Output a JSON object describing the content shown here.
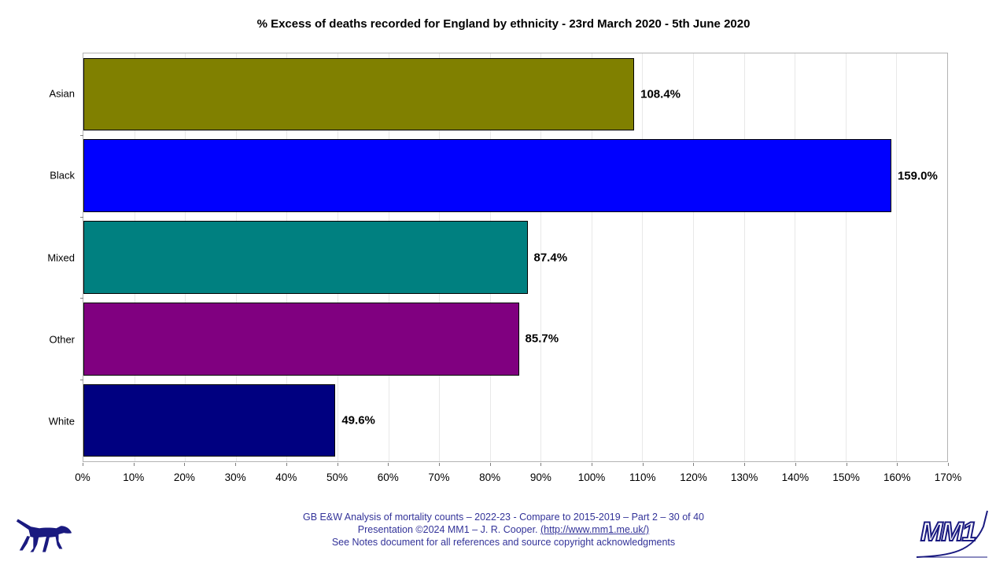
{
  "title": "% Excess of deaths recorded for England by ethnicity - 23rd March 2020 - 5th June 2020",
  "chart_data": {
    "type": "bar",
    "orientation": "horizontal",
    "title": "% Excess of deaths recorded for England by ethnicity - 23rd March 2020 - 5th June 2020",
    "categories": [
      "Asian",
      "Black",
      "Mixed",
      "Other",
      "White"
    ],
    "values": [
      108.4,
      159.0,
      87.4,
      85.7,
      49.6
    ],
    "value_labels": [
      "108.4%",
      "159.0%",
      "87.4%",
      "85.7%",
      "49.6%"
    ],
    "bar_colors": [
      "#808000",
      "#0000FF",
      "#008080",
      "#800080",
      "#000080"
    ],
    "bar_border_color": "#000000",
    "xlabel": "",
    "ylabel": "",
    "xlim": [
      0,
      170
    ],
    "x_tick_step": 10,
    "x_tick_values": [
      0,
      10,
      20,
      30,
      40,
      50,
      60,
      70,
      80,
      90,
      100,
      110,
      120,
      130,
      140,
      150,
      160,
      170
    ],
    "x_tick_labels": [
      "0%",
      "10%",
      "20%",
      "30%",
      "40%",
      "50%",
      "60%",
      "70%",
      "80%",
      "90%",
      "100%",
      "110%",
      "120%",
      "130%",
      "140%",
      "150%",
      "160%",
      "170%"
    ],
    "grid": "vertical",
    "gridline_color": "#e8e8e8",
    "legend": "none"
  },
  "footer": {
    "line1": "GB E&W Analysis of mortality counts – 2022-23 - Compare to 2015-2019 – Part 2 – 30 of 40",
    "line2_prefix": "Presentation ©2024 MM1 – J. R. Cooper. ",
    "line2_link": "(http://www.mm1.me.uk/)",
    "line3": "See Notes document for all references and source copyright acknowledgments",
    "text_color": "#333399"
  },
  "logos": {
    "dog": "dog-silhouette-logo",
    "mm1": "mm1-logo",
    "logo_color": "#1a1a80"
  }
}
